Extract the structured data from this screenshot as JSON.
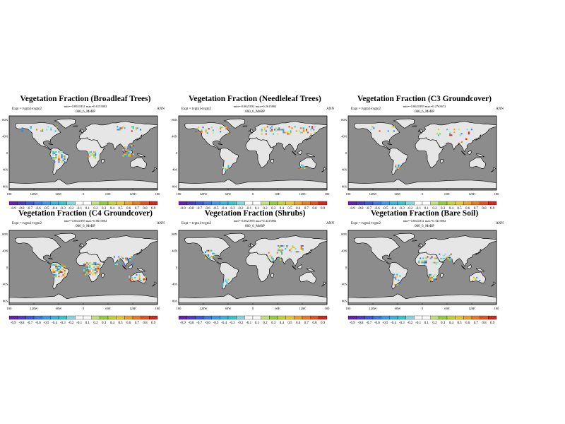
{
  "season": "ANN",
  "expt_label": "Expt = tvgtn1-tvgtn2",
  "case_label": "060_6_MeBP",
  "x_ticks": [
    "180",
    "120W",
    "60W",
    "0",
    "60E",
    "120E",
    "180"
  ],
  "y_ticks": [
    "80N",
    "40N",
    "0",
    "40S",
    "80S"
  ],
  "colorbar_levels": [
    "-0.9",
    "-0.8",
    "-0.7",
    "-0.6",
    "-0.5",
    "-0.4",
    "-0.3",
    "-0.2",
    "-0.1",
    "0.1",
    "0.2",
    "0.3",
    "0.4",
    "0.5",
    "0.6",
    "0.7",
    "0.8",
    "0.9"
  ],
  "colorbar_colors": [
    "#6a1fb4",
    "#4f38cc",
    "#3d58dc",
    "#3a7be6",
    "#3c9ce8",
    "#37b5e0",
    "#2ec6d0",
    "#7fd8e6",
    "#ffffff",
    "#ffffff",
    "#bfe37a",
    "#96d02f",
    "#c6d42a",
    "#e9c92a",
    "#f0a21e",
    "#ee7c1d",
    "#e6521c",
    "#d2271d"
  ],
  "colors": {
    "ocean": "#8c8c8c",
    "land": "#e6e6e6",
    "coast": "#000000"
  },
  "panels": [
    {
      "title": "Vegetation Fraction (Broadleaf Trees)",
      "range": "min=-0.0921831 max=0.6153802"
    },
    {
      "title": "Vegetation Fraction (Needleleaf Trees)",
      "range": "min=-0.0621831 max=0.2615802"
    },
    {
      "title": "Vegetation Fraction (C3 Groundcover)",
      "range": "min=-0.0621895 max=0.2763672"
    },
    {
      "title": "Vegetation Fraction (C4 Groundcover)",
      "range": "min=-0.0621895 max=0.8615802"
    },
    {
      "title": "Vegetation Fraction (Shrubs)",
      "range": "min=-0.0621895 max=0.4415802"
    },
    {
      "title": "Vegetation Fraction (Bare Soil)",
      "range": "min=-0.0621831 max=0.3415802"
    }
  ]
}
